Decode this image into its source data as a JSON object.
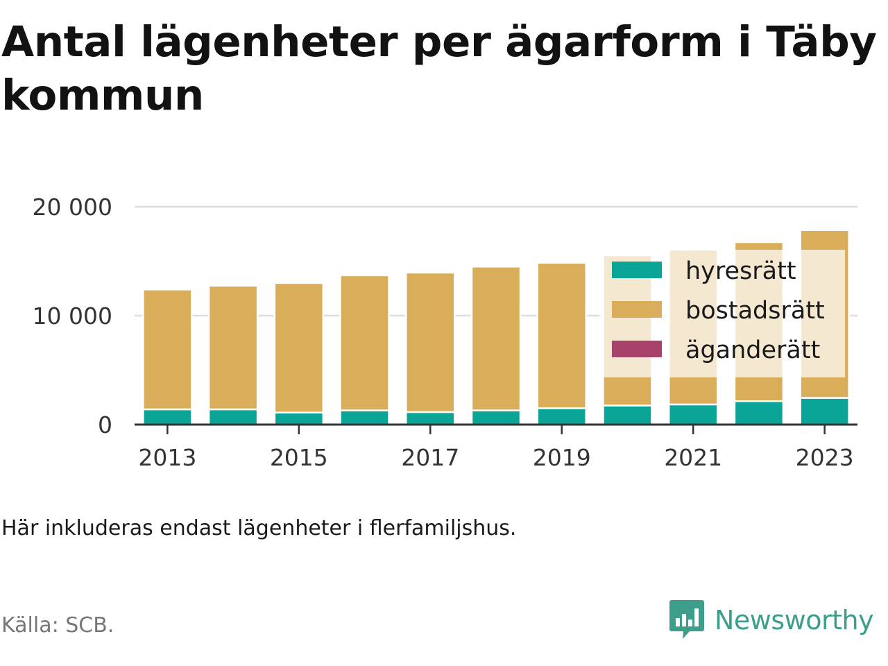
{
  "title": "Antal lägenheter per ägarform i Täby kommun",
  "note": "Här inkluderas endast lägenheter i flerfamiljshus.",
  "source": "Källa: SCB.",
  "brand": "Newsworthy",
  "colors": {
    "hyresratt": "#0aa596",
    "bostadsratt": "#d9ad5a",
    "aganderatt": "#a8426a",
    "grid": "#dddddd",
    "axis": "#333333",
    "brand": "#3d9e8c"
  },
  "chart_data": {
    "type": "bar",
    "stacked": true,
    "categories": [
      "2013",
      "2014",
      "2015",
      "2016",
      "2017",
      "2018",
      "2019",
      "2020",
      "2021",
      "2022",
      "2023"
    ],
    "x_tick_labels": [
      "2013",
      "2015",
      "2017",
      "2019",
      "2021",
      "2023"
    ],
    "y_ticks": [
      0,
      10000,
      20000
    ],
    "y_tick_labels": [
      "0",
      "10 000",
      "20 000"
    ],
    "ylim": [
      0,
      20500
    ],
    "grid": true,
    "legend_position": "top-right",
    "series": [
      {
        "name": "hyresrätt",
        "color": "#0aa596",
        "values": [
          1400,
          1400,
          1100,
          1300,
          1150,
          1300,
          1500,
          1750,
          1850,
          2150,
          2450
        ]
      },
      {
        "name": "bostadsrätt",
        "color": "#d9ad5a",
        "values": [
          11000,
          11350,
          11900,
          12400,
          12800,
          13200,
          13350,
          13800,
          14200,
          14600,
          15400
        ]
      },
      {
        "name": "äganderätt",
        "color": "#a8426a",
        "values": [
          0,
          0,
          0,
          0,
          0,
          0,
          0,
          0,
          0,
          0,
          0
        ]
      }
    ]
  }
}
